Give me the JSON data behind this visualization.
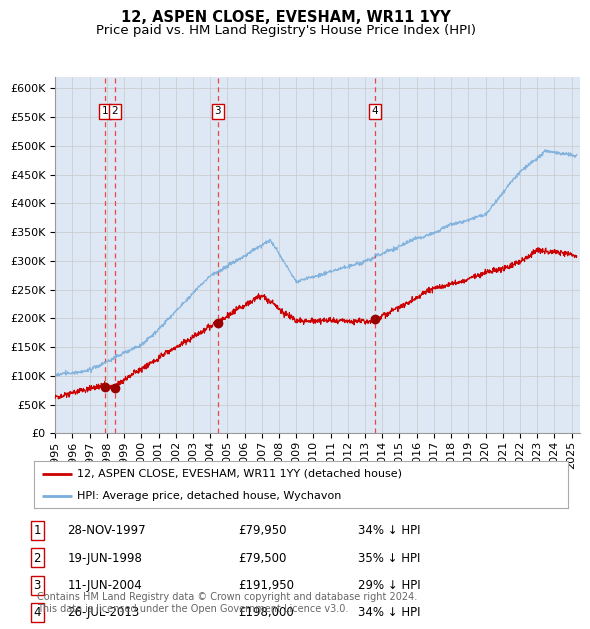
{
  "title": "12, ASPEN CLOSE, EVESHAM, WR11 1YY",
  "subtitle": "Price paid vs. HM Land Registry's House Price Index (HPI)",
  "ylim": [
    0,
    620000
  ],
  "xlim_start": 1995.0,
  "xlim_end": 2025.5,
  "background_color": "#dde8f4",
  "plot_bg_color": "#ffffff",
  "grid_color": "#c8c8c8",
  "hpi_line_color": "#7aaedc",
  "price_line_color": "#cc0000",
  "sale_marker_color": "#990000",
  "annotation_box_color": "#cc0000",
  "dashed_line_color": "#ee4444",
  "legend_box_color": "#ffffff",
  "footer_text": "Contains HM Land Registry data © Crown copyright and database right 2024.\nThis data is licensed under the Open Government Licence v3.0.",
  "legend_entry1": "12, ASPEN CLOSE, EVESHAM, WR11 1YY (detached house)",
  "legend_entry2": "HPI: Average price, detached house, Wychavon",
  "sales": [
    {
      "num": 1,
      "date": "28-NOV-1997",
      "price": 79950,
      "hpi_pct": "34% ↓ HPI",
      "year": 1997.91
    },
    {
      "num": 2,
      "date": "19-JUN-1998",
      "price": 79500,
      "hpi_pct": "35% ↓ HPI",
      "year": 1998.46
    },
    {
      "num": 3,
      "date": "11-JUN-2004",
      "price": 191950,
      "hpi_pct": "29% ↓ HPI",
      "year": 2004.44
    },
    {
      "num": 4,
      "date": "26-JUL-2013",
      "price": 198000,
      "hpi_pct": "34% ↓ HPI",
      "year": 2013.57
    }
  ],
  "title_fontsize": 10.5,
  "subtitle_fontsize": 9.5,
  "tick_fontsize": 8,
  "legend_fontsize": 8,
  "table_fontsize": 8.5,
  "footer_fontsize": 7
}
